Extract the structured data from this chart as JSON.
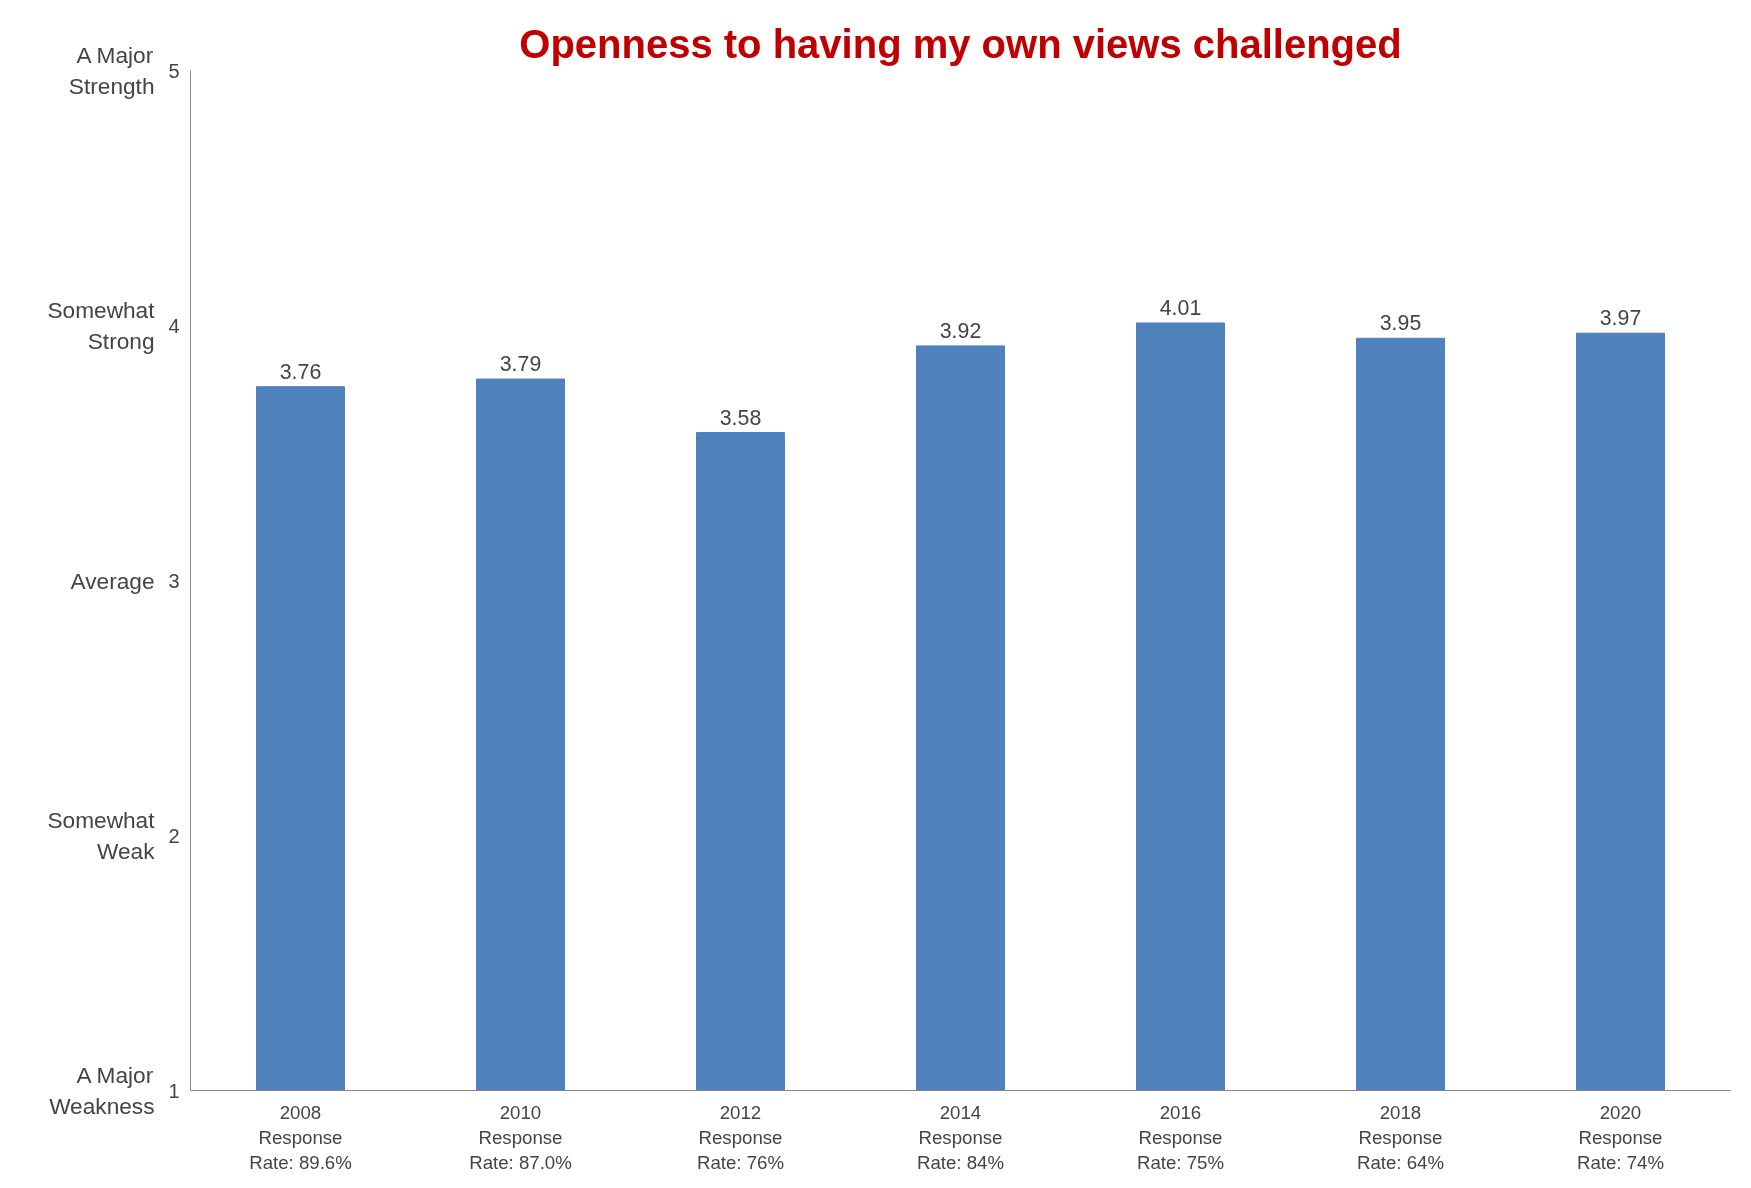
{
  "chart_data": {
    "type": "bar",
    "title": "Openness to having my own views challenged",
    "categories": [
      "2008\nResponse\nRate: 89.6%",
      "2010\nResponse\nRate: 87.0%",
      "2012\nResponse\nRate: 76%",
      "2014\nResponse\nRate: 84%",
      "2016\nResponse\nRate: 75%",
      "2018\nResponse\nRate: 64%",
      "2020\nResponse\nRate: 74%"
    ],
    "values": [
      3.76,
      3.79,
      3.58,
      3.92,
      4.01,
      3.95,
      3.97
    ],
    "color": "#4f81bd",
    "data_labels": true,
    "grid": false,
    "ylim": [
      1,
      5
    ],
    "yticks": [
      1,
      2,
      3,
      4,
      5
    ],
    "annotations": [
      "A Major\nStrength",
      "Somewhat\nStrong",
      "Average",
      "Somewhat\nWeak",
      "A Major\nWeakness"
    ]
  }
}
